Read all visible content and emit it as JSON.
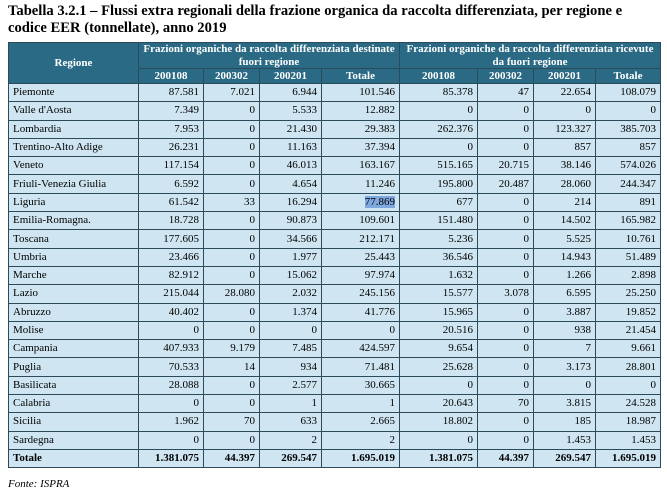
{
  "title": "Tabella 3.2.1 – Flussi extra regionali della frazione organica da raccolta differenziata, per regione e codice EER (tonnellate), anno 2019",
  "header": {
    "regione": "Regione",
    "group1": "Frazioni organiche da raccolta differenziata destinate fuori regione",
    "group2": "Frazioni organiche da raccolta differenziata ricevute da fuori regione",
    "cols": [
      "200108",
      "200302",
      "200201",
      "Totale",
      "200108",
      "200302",
      "200201",
      "Totale"
    ]
  },
  "rows": [
    [
      "Piemonte",
      "87.581",
      "7.021",
      "6.944",
      "101.546",
      "85.378",
      "47",
      "22.654",
      "108.079"
    ],
    [
      "Valle d'Aosta",
      "7.349",
      "0",
      "5.533",
      "12.882",
      "0",
      "0",
      "0",
      "0"
    ],
    [
      "Lombardia",
      "7.953",
      "0",
      "21.430",
      "29.383",
      "262.376",
      "0",
      "123.327",
      "385.703"
    ],
    [
      "Trentino-Alto Adige",
      "26.231",
      "0",
      "11.163",
      "37.394",
      "0",
      "0",
      "857",
      "857"
    ],
    [
      "Veneto",
      "117.154",
      "0",
      "46.013",
      "163.167",
      "515.165",
      "20.715",
      "38.146",
      "574.026"
    ],
    [
      "Friuli-Venezia Giulia",
      "6.592",
      "0",
      "4.654",
      "11.246",
      "195.800",
      "20.487",
      "28.060",
      "244.347"
    ],
    [
      "Liguria",
      "61.542",
      "33",
      "16.294",
      "77.869",
      "677",
      "0",
      "214",
      "891"
    ],
    [
      "Emilia-Romagna.",
      "18.728",
      "0",
      "90.873",
      "109.601",
      "151.480",
      "0",
      "14.502",
      "165.982"
    ],
    [
      "Toscana",
      "177.605",
      "0",
      "34.566",
      "212.171",
      "5.236",
      "0",
      "5.525",
      "10.761"
    ],
    [
      "Umbria",
      "23.466",
      "0",
      "1.977",
      "25.443",
      "36.546",
      "0",
      "14.943",
      "51.489"
    ],
    [
      "Marche",
      "82.912",
      "0",
      "15.062",
      "97.974",
      "1.632",
      "0",
      "1.266",
      "2.898"
    ],
    [
      "Lazio",
      "215.044",
      "28.080",
      "2.032",
      "245.156",
      "15.577",
      "3.078",
      "6.595",
      "25.250"
    ],
    [
      "Abruzzo",
      "40.402",
      "0",
      "1.374",
      "41.776",
      "15.965",
      "0",
      "3.887",
      "19.852"
    ],
    [
      "Molise",
      "0",
      "0",
      "0",
      "0",
      "20.516",
      "0",
      "938",
      "21.454"
    ],
    [
      "Campania",
      "407.933",
      "9.179",
      "7.485",
      "424.597",
      "9.654",
      "0",
      "7",
      "9.661"
    ],
    [
      "Puglia",
      "70.533",
      "14",
      "934",
      "71.481",
      "25.628",
      "0",
      "3.173",
      "28.801"
    ],
    [
      "Basilicata",
      "28.088",
      "0",
      "2.577",
      "30.665",
      "0",
      "0",
      "0",
      "0"
    ],
    [
      "Calabria",
      "0",
      "0",
      "1",
      "1",
      "20.643",
      "70",
      "3.815",
      "24.528"
    ],
    [
      "Sicilia",
      "1.962",
      "70",
      "633",
      "2.665",
      "18.802",
      "0",
      "185",
      "18.987"
    ],
    [
      "Sardegna",
      "0",
      "0",
      "2",
      "2",
      "0",
      "0",
      "1.453",
      "1.453"
    ]
  ],
  "total": [
    "Totale",
    "1.381.075",
    "44.397",
    "269.547",
    "1.695.019",
    "1.381.075",
    "44.397",
    "269.547",
    "1.695.019"
  ],
  "highlight": {
    "row": 6,
    "col": 4,
    "color": "#7fa8de"
  },
  "source": "Fonte: ISPRA"
}
